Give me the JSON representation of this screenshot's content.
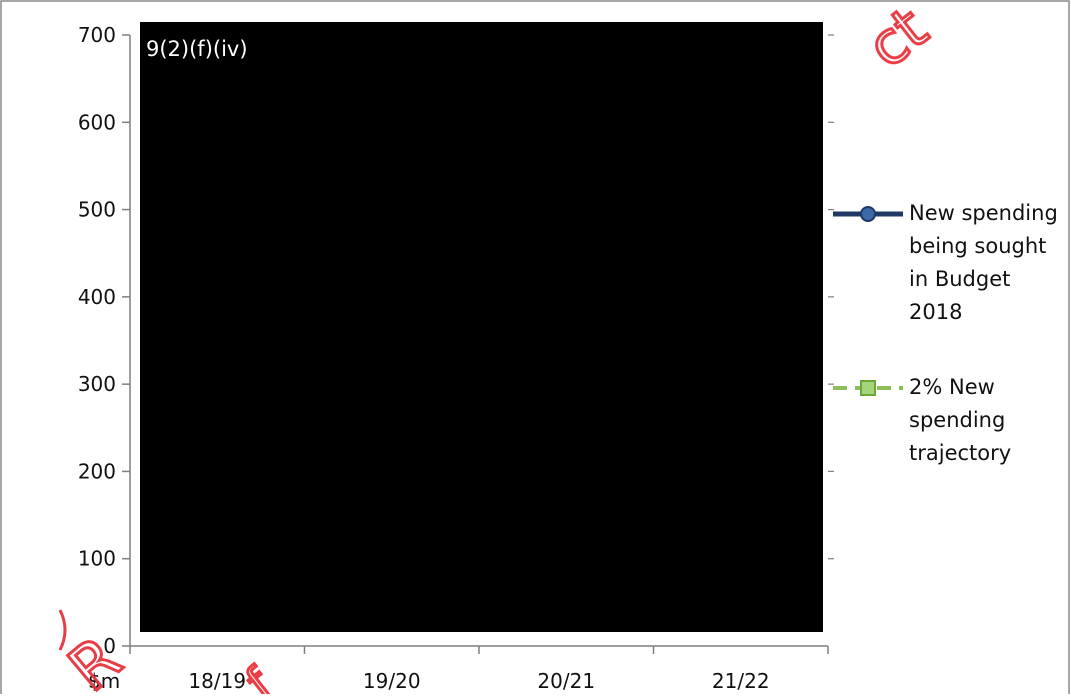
{
  "chart_data": {
    "type": "line",
    "title": "",
    "xlabel": "",
    "ylabel": "",
    "y_unit_label": "$m",
    "ylim": [
      0,
      700
    ],
    "yticks": [
      0,
      100,
      200,
      300,
      400,
      500,
      600,
      700
    ],
    "categories": [
      "18/19",
      "19/20",
      "20/21",
      "21/22"
    ],
    "redaction_label": "9(2)(f)(iv)",
    "series": [
      {
        "name": "New spending being sought in Budget 2018",
        "color": "#1f3864",
        "marker": "circle",
        "values": null
      },
      {
        "name": "2% New spending trajectory",
        "color": "#8cbf5a",
        "marker": "square",
        "values": null
      }
    ],
    "legend": {
      "position": "right",
      "lines": [
        [
          "New spending",
          "being sought",
          "in Budget",
          "2018"
        ],
        [
          "2% New",
          "spending",
          "trajectory"
        ]
      ]
    },
    "colors": {
      "redaction": "#000000",
      "axis": "#7f7f7f",
      "watermark": "#e8323c"
    },
    "watermark_fragments": [
      "ct",
      "R",
      "f"
    ]
  }
}
